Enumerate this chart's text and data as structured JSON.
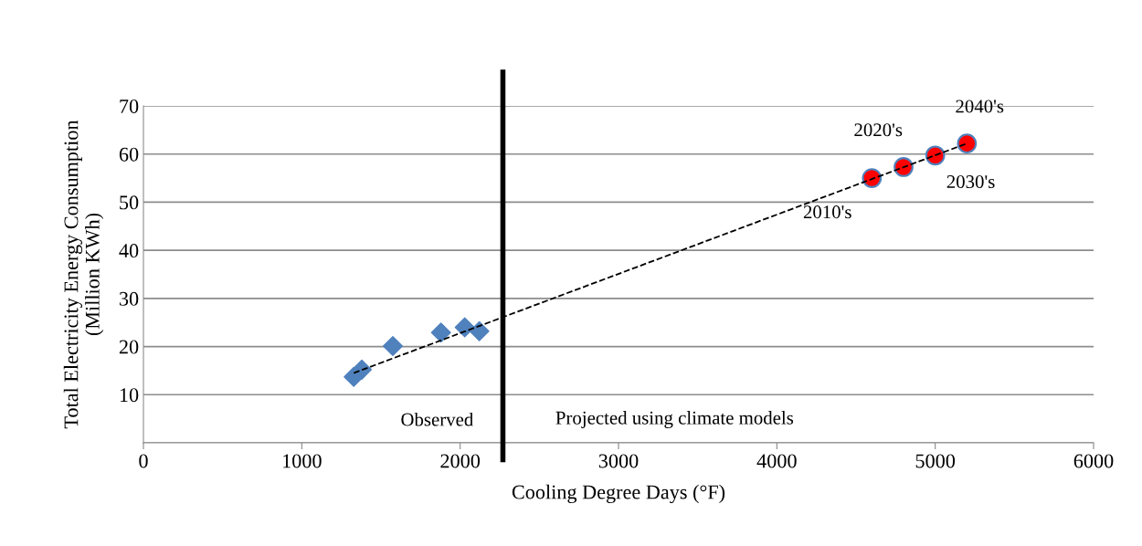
{
  "chart_data": {
    "type": "scatter",
    "xlabel": "Cooling Degree Days (°F)",
    "ylabel": "Total Electricity Energy Consumption\n(Million KWh)",
    "xlim": [
      0,
      6000
    ],
    "xticks": [
      0,
      1000,
      2000,
      3000,
      4000,
      5000,
      6000
    ],
    "ylim": [
      0,
      70
    ],
    "yticks": [
      {
        "value": 0,
        "label": null
      },
      10,
      20,
      30,
      40,
      50,
      60,
      70
    ],
    "grid": "y",
    "legend": false,
    "series": [
      {
        "marker": "diamond",
        "color": "#4f81bd",
        "x": [
          1328,
          1379,
          1575,
          1879,
          2029,
          2121
        ],
        "values": [
          13.7,
          15.2,
          20.1,
          22.9,
          24.0,
          23.2
        ]
      },
      {
        "marker": "circle",
        "color": "#ff0000",
        "x": [
          4600,
          4800,
          5000,
          5200
        ],
        "values": [
          55.0,
          57.3,
          59.7,
          62.2
        ]
      },
      {
        "type": "line",
        "line_style": "dashed",
        "marker": "none",
        "color": "#000000",
        "x": [
          1328,
          5200
        ],
        "values": [
          14.5,
          62.2
        ]
      }
    ],
    "ref_lines": [
      {
        "axis": "x",
        "value": 2270,
        "color": "#000000"
      }
    ],
    "annotations": [
      {
        "text": "2010's",
        "x": 4600,
        "y": 55.0
      },
      {
        "text": "2020's",
        "x": 4800,
        "y": 57.3
      },
      {
        "text": "2030's",
        "x": 5000,
        "y": 59.7
      },
      {
        "text": "2040's",
        "x": 5200,
        "y": 62.2
      },
      "Observed",
      "Projected using climate models"
    ]
  }
}
